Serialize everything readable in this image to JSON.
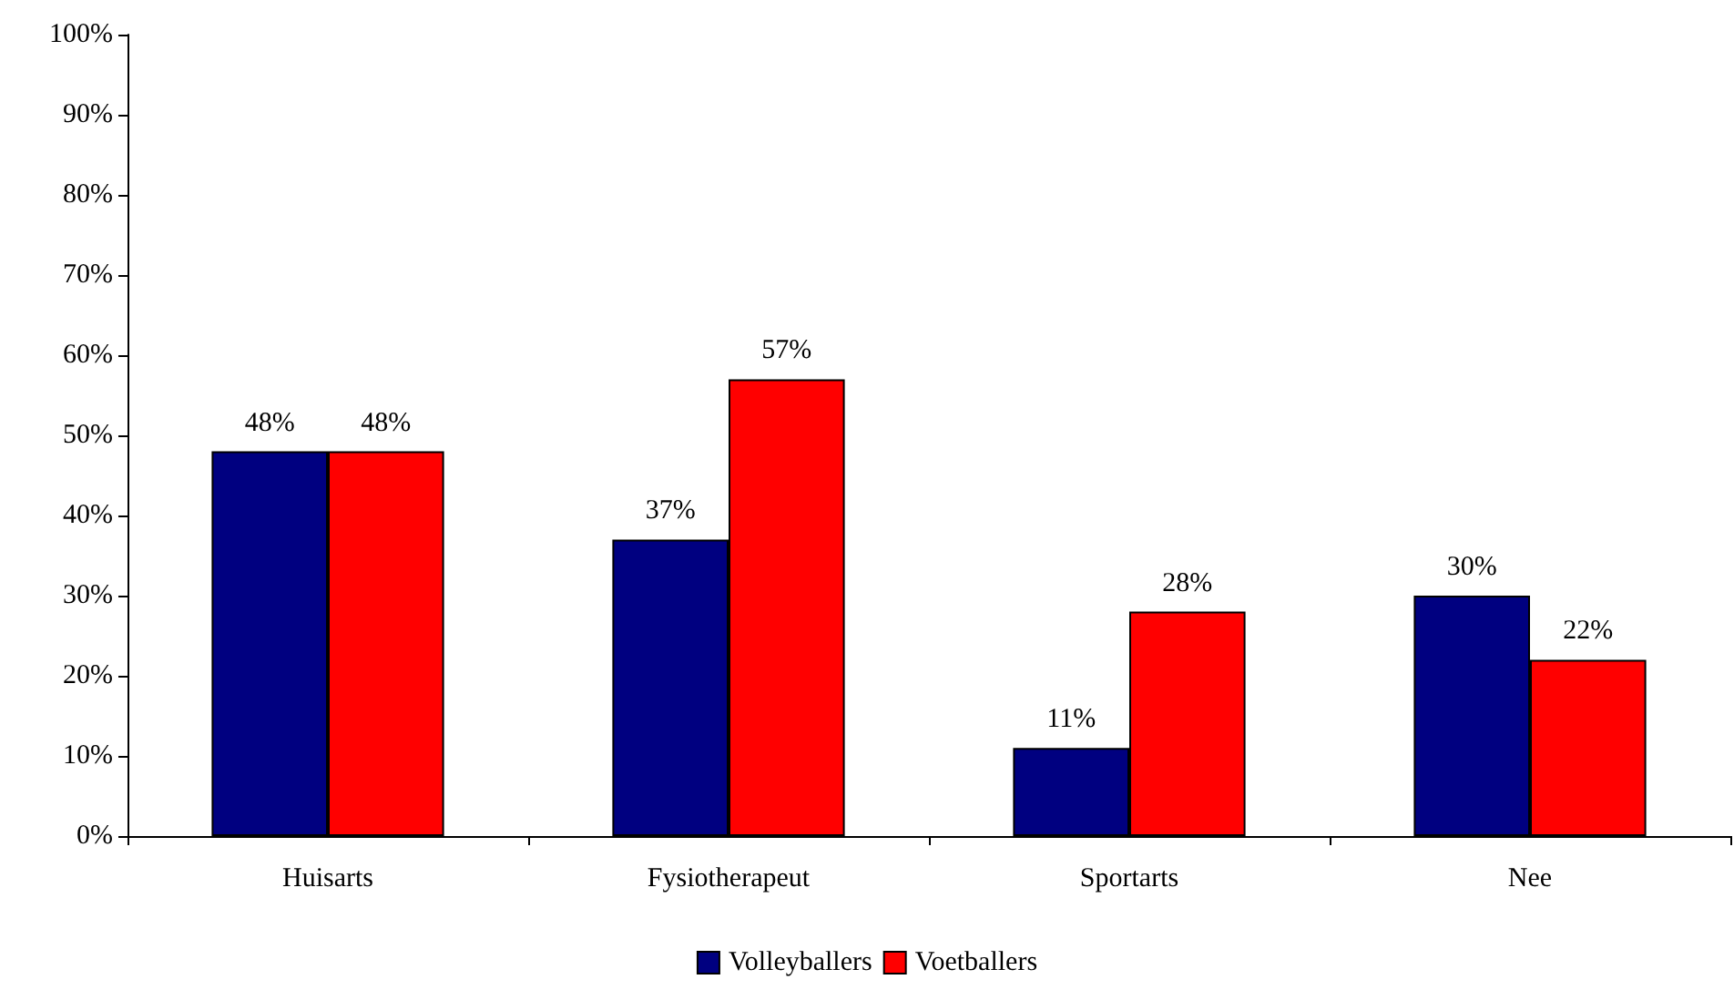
{
  "chart_data": {
    "type": "bar",
    "categories": [
      "Huisarts",
      "Fysiotherapeut",
      "Sportarts",
      "Nee"
    ],
    "series": [
      {
        "name": "Volleyballers",
        "color": "#000080",
        "values": [
          48,
          37,
          11,
          30
        ],
        "value_labels": [
          "48%",
          "37%",
          "11%",
          "30%"
        ]
      },
      {
        "name": "Voetballers",
        "color": "#ff0000",
        "values": [
          48,
          57,
          28,
          22
        ],
        "value_labels": [
          "48%",
          "57%",
          "28%",
          "22%"
        ]
      }
    ],
    "ylim": [
      0,
      100
    ],
    "yticks": [
      {
        "value": 0,
        "label": "0%"
      },
      {
        "value": 10,
        "label": "10%"
      },
      {
        "value": 20,
        "label": "20%"
      },
      {
        "value": 30,
        "label": "30%"
      },
      {
        "value": 40,
        "label": "40%"
      },
      {
        "value": 50,
        "label": "50%"
      },
      {
        "value": 60,
        "label": "60%"
      },
      {
        "value": 70,
        "label": "70%"
      },
      {
        "value": 80,
        "label": "80%"
      },
      {
        "value": 90,
        "label": "90%"
      },
      {
        "value": 100,
        "label": "100%"
      }
    ],
    "grid": false,
    "legend": "bottom"
  }
}
